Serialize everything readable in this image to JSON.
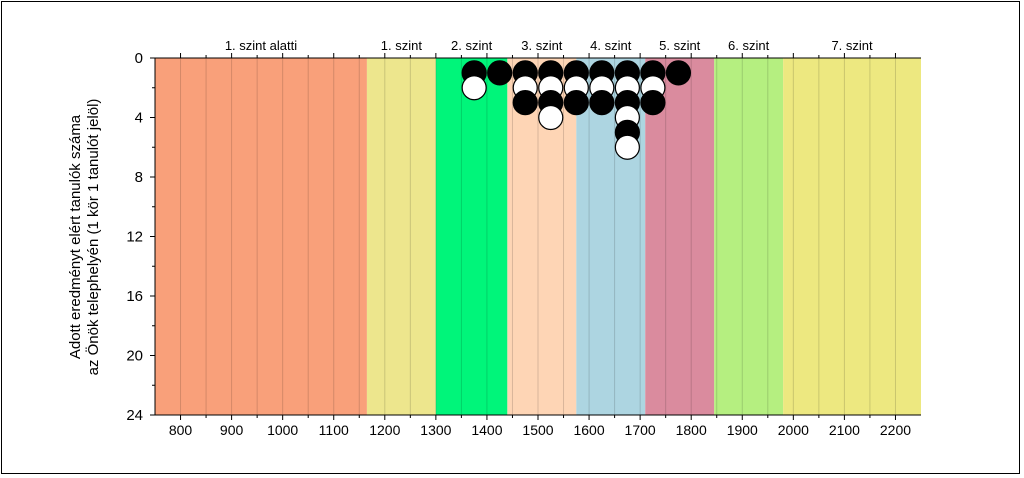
{
  "chart_data": {
    "type": "scatter",
    "xlabel": "",
    "ylabel_lines": [
      "Adott eredményt elért tanulók száma",
      "az Önök telephelyén (1 kör 1 tanulót jelöl)"
    ],
    "xlim": [
      750,
      2250
    ],
    "ylim": [
      24,
      0
    ],
    "y_inverted": true,
    "grid": "vertical lines every 50 units",
    "x_ticks": [
      800,
      900,
      1000,
      1100,
      1200,
      1300,
      1400,
      1500,
      1600,
      1700,
      1800,
      1900,
      2000,
      2100,
      2200
    ],
    "y_ticks": [
      0,
      4,
      8,
      12,
      16,
      20,
      24
    ],
    "bands": [
      {
        "label": "1. szint alatti",
        "from": 750,
        "to": 1165,
        "color": "#f9a07a"
      },
      {
        "label": "1. szint",
        "from": 1165,
        "to": 1300,
        "color": "#ede68d"
      },
      {
        "label": "2. szint",
        "from": 1300,
        "to": 1440,
        "color": "#00f57a"
      },
      {
        "label": "3. szint",
        "from": 1440,
        "to": 1575,
        "color": "#fed5b5"
      },
      {
        "label": "4. szint",
        "from": 1575,
        "to": 1710,
        "color": "#add5e1"
      },
      {
        "label": "5. szint",
        "from": 1710,
        "to": 1845,
        "color": "#da8b9e"
      },
      {
        "label": "6. szint",
        "from": 1845,
        "to": 1980,
        "color": "#b5ef80"
      },
      {
        "label": "7. szint",
        "from": 1980,
        "to": 2250,
        "color": "#ede880"
      }
    ],
    "series": [
      {
        "x": 1375,
        "counts": [
          1,
          2
        ],
        "fills": [
          "black",
          "white"
        ]
      },
      {
        "x": 1425,
        "counts": [
          1
        ],
        "fills": [
          "black"
        ]
      },
      {
        "x": 1475,
        "counts": [
          1,
          2,
          3
        ],
        "fills": [
          "black",
          "white",
          "black"
        ]
      },
      {
        "x": 1525,
        "counts": [
          1,
          2,
          3,
          4
        ],
        "fills": [
          "black",
          "white",
          "black",
          "white"
        ]
      },
      {
        "x": 1575,
        "counts": [
          1,
          2,
          3
        ],
        "fills": [
          "black",
          "white",
          "black"
        ]
      },
      {
        "x": 1625,
        "counts": [
          1,
          2,
          3
        ],
        "fills": [
          "black",
          "white",
          "black"
        ]
      },
      {
        "x": 1675,
        "counts": [
          1,
          2,
          3,
          4,
          5,
          6
        ],
        "fills": [
          "black",
          "white",
          "black",
          "white",
          "black",
          "white"
        ]
      },
      {
        "x": 1725,
        "counts": [
          1,
          2,
          3
        ],
        "fills": [
          "black",
          "white",
          "black"
        ]
      },
      {
        "x": 1775,
        "counts": [
          1
        ],
        "fills": [
          "black"
        ]
      }
    ]
  }
}
